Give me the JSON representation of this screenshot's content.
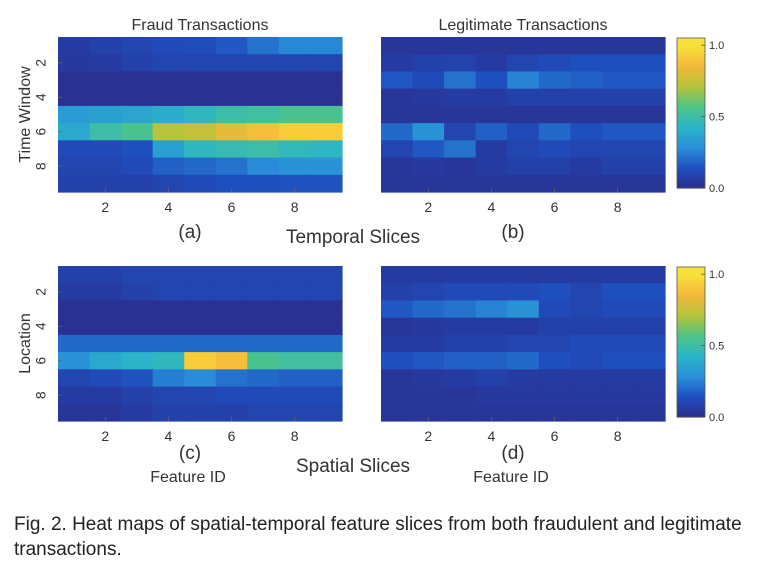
{
  "colors": {
    "colormap": [
      "#2b2c8c",
      "#1f4fbf",
      "#2a8fd9",
      "#2bb5c8",
      "#4fc486",
      "#b4c33a",
      "#f5b83a",
      "#f8e13a"
    ]
  },
  "chart_data": [
    {
      "type": "heatmap",
      "panel": "(a)",
      "title": "Fraud Transactions",
      "ylabel": "Time Window",
      "xlabel": "",
      "xticks": [
        2,
        4,
        6,
        8
      ],
      "yticks": [
        2,
        4,
        6,
        8
      ],
      "xlim": [
        0.5,
        9.5
      ],
      "ylim": [
        0.5,
        9.5
      ],
      "values": [
        [
          0.06,
          0.08,
          0.1,
          0.12,
          0.13,
          0.16,
          0.22,
          0.27,
          0.27
        ],
        [
          0.05,
          0.06,
          0.08,
          0.1,
          0.1,
          0.1,
          0.1,
          0.1,
          0.1
        ],
        [
          0.02,
          0.02,
          0.02,
          0.02,
          0.02,
          0.02,
          0.02,
          0.02,
          0.02
        ],
        [
          0.02,
          0.02,
          0.02,
          0.02,
          0.02,
          0.02,
          0.02,
          0.02,
          0.02
        ],
        [
          0.33,
          0.35,
          0.37,
          0.4,
          0.45,
          0.5,
          0.52,
          0.55,
          0.55
        ],
        [
          0.38,
          0.5,
          0.55,
          0.72,
          0.75,
          0.82,
          0.88,
          0.93,
          0.93
        ],
        [
          0.12,
          0.12,
          0.14,
          0.35,
          0.45,
          0.48,
          0.5,
          0.46,
          0.44
        ],
        [
          0.1,
          0.1,
          0.12,
          0.18,
          0.2,
          0.22,
          0.28,
          0.3,
          0.3
        ],
        [
          0.08,
          0.08,
          0.08,
          0.1,
          0.12,
          0.14,
          0.14,
          0.15,
          0.15
        ]
      ]
    },
    {
      "type": "heatmap",
      "panel": "(b)",
      "title": "Legitimate Transactions",
      "ylabel": "",
      "xlabel": "",
      "xticks": [
        2,
        4,
        6,
        8
      ],
      "yticks": [],
      "xlim": [
        0.5,
        9.5
      ],
      "ylim": [
        0.5,
        9.5
      ],
      "values": [
        [
          0.04,
          0.04,
          0.04,
          0.04,
          0.04,
          0.04,
          0.04,
          0.04,
          0.04
        ],
        [
          0.06,
          0.08,
          0.09,
          0.06,
          0.1,
          0.12,
          0.14,
          0.14,
          0.14
        ],
        [
          0.16,
          0.12,
          0.22,
          0.14,
          0.26,
          0.2,
          0.18,
          0.16,
          0.16
        ],
        [
          0.04,
          0.05,
          0.06,
          0.06,
          0.08,
          0.08,
          0.08,
          0.08,
          0.08
        ],
        [
          0.04,
          0.04,
          0.04,
          0.04,
          0.04,
          0.04,
          0.04,
          0.04,
          0.04
        ],
        [
          0.2,
          0.3,
          0.1,
          0.18,
          0.12,
          0.2,
          0.14,
          0.16,
          0.16
        ],
        [
          0.1,
          0.16,
          0.22,
          0.06,
          0.1,
          0.12,
          0.1,
          0.1,
          0.1
        ],
        [
          0.04,
          0.05,
          0.04,
          0.06,
          0.08,
          0.08,
          0.06,
          0.08,
          0.08
        ],
        [
          0.04,
          0.04,
          0.04,
          0.04,
          0.04,
          0.04,
          0.04,
          0.04,
          0.04
        ]
      ]
    },
    {
      "type": "heatmap",
      "panel": "(c)",
      "title": "",
      "ylabel": "Location",
      "xlabel": "Feature ID",
      "xticks": [
        2,
        4,
        6,
        8
      ],
      "yticks": [
        2,
        4,
        6,
        8
      ],
      "xlim": [
        0.5,
        9.5
      ],
      "ylim": [
        0.5,
        9.5
      ],
      "values": [
        [
          0.08,
          0.08,
          0.1,
          0.1,
          0.1,
          0.1,
          0.1,
          0.1,
          0.1
        ],
        [
          0.06,
          0.06,
          0.08,
          0.1,
          0.1,
          0.1,
          0.1,
          0.1,
          0.1
        ],
        [
          0.02,
          0.02,
          0.02,
          0.02,
          0.02,
          0.02,
          0.02,
          0.02,
          0.02
        ],
        [
          0.02,
          0.02,
          0.02,
          0.02,
          0.02,
          0.02,
          0.02,
          0.02,
          0.02
        ],
        [
          0.2,
          0.2,
          0.2,
          0.2,
          0.2,
          0.2,
          0.2,
          0.2,
          0.2
        ],
        [
          0.3,
          0.38,
          0.42,
          0.45,
          0.93,
          0.88,
          0.55,
          0.52,
          0.52
        ],
        [
          0.1,
          0.12,
          0.15,
          0.25,
          0.28,
          0.22,
          0.2,
          0.18,
          0.18
        ],
        [
          0.06,
          0.06,
          0.08,
          0.1,
          0.1,
          0.12,
          0.12,
          0.12,
          0.12
        ],
        [
          0.04,
          0.04,
          0.06,
          0.08,
          0.08,
          0.08,
          0.1,
          0.1,
          0.1
        ]
      ]
    },
    {
      "type": "heatmap",
      "panel": "(d)",
      "title": "",
      "ylabel": "",
      "xlabel": "Feature ID",
      "xticks": [
        2,
        4,
        6,
        8
      ],
      "yticks": [],
      "xlim": [
        0.5,
        9.5
      ],
      "ylim": [
        0.5,
        9.5
      ],
      "values": [
        [
          0.06,
          0.06,
          0.06,
          0.06,
          0.06,
          0.06,
          0.06,
          0.06,
          0.06
        ],
        [
          0.08,
          0.1,
          0.12,
          0.12,
          0.12,
          0.14,
          0.1,
          0.14,
          0.14
        ],
        [
          0.16,
          0.2,
          0.22,
          0.26,
          0.3,
          0.12,
          0.1,
          0.12,
          0.12
        ],
        [
          0.04,
          0.05,
          0.06,
          0.06,
          0.06,
          0.08,
          0.08,
          0.08,
          0.08
        ],
        [
          0.06,
          0.06,
          0.08,
          0.08,
          0.1,
          0.1,
          0.12,
          0.12,
          0.12
        ],
        [
          0.14,
          0.16,
          0.18,
          0.18,
          0.2,
          0.14,
          0.12,
          0.14,
          0.14
        ],
        [
          0.04,
          0.05,
          0.06,
          0.08,
          0.06,
          0.06,
          0.06,
          0.06,
          0.06
        ],
        [
          0.04,
          0.04,
          0.04,
          0.05,
          0.05,
          0.05,
          0.05,
          0.05,
          0.05
        ],
        [
          0.04,
          0.04,
          0.04,
          0.04,
          0.04,
          0.04,
          0.04,
          0.04,
          0.04
        ]
      ]
    }
  ],
  "colorbars": [
    {
      "ticks": [
        "1.0",
        "0.5",
        "0.0"
      ],
      "values": [
        1.0,
        0.5,
        0.0
      ],
      "range": [
        0,
        1.05
      ]
    },
    {
      "ticks": [
        "1.0",
        "0.5",
        "0.0"
      ],
      "values": [
        1.0,
        0.5,
        0.0
      ],
      "range": [
        0,
        1.05
      ]
    }
  ],
  "row_labels": {
    "top": "Temporal Slices",
    "bottom": "Spatial Slices"
  },
  "caption": "Fig. 2. Heat maps of spatial-temporal feature slices from both fraudulent and legitimate transactions."
}
